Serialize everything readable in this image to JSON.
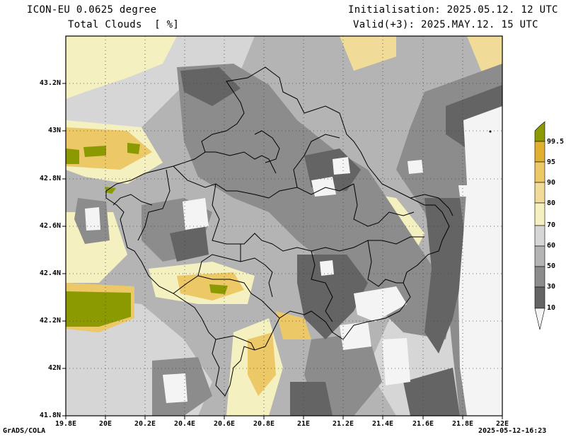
{
  "header": {
    "model": "ICON-EU 0.0625 degree",
    "variable": "Total Clouds  [ %]",
    "init": "Initialisation: 2025.05.12. 12 UTC",
    "valid": "Valid(+3): 2025.MAY.12. 15 UTC"
  },
  "footer": {
    "credit": "GrADS/COLA",
    "timestamp": "2025-05-12-16:23"
  },
  "map": {
    "lat_labels": [
      "43.2N",
      "43N",
      "42.8N",
      "42.6N",
      "42.4N",
      "42.2N",
      "42N",
      "41.8N"
    ],
    "lon_labels": [
      "19.8E",
      "20E",
      "20.2E",
      "20.4E",
      "20.6E",
      "20.8E",
      "21E",
      "21.2E",
      "21.4E",
      "21.6E",
      "21.8E",
      "22E"
    ]
  },
  "colorbar": {
    "labels": [
      "99.5",
      "95",
      "90",
      "80",
      "70",
      "60",
      "50",
      "30",
      "10"
    ],
    "colors": [
      "#8a9a00",
      "#e0b030",
      "#ecc866",
      "#f0dc98",
      "#f4f0c0",
      "#d6d6d6",
      "#b4b4b4",
      "#8c8c8c",
      "#646464",
      "#f4f4f4"
    ]
  }
}
